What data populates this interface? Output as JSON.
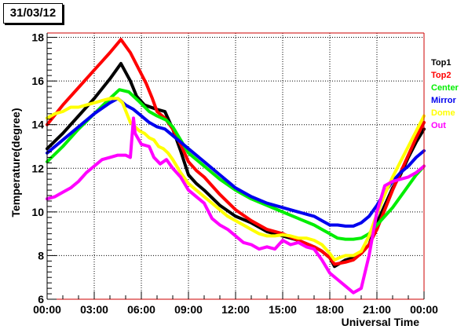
{
  "title": "31/03/12",
  "chart_data": {
    "type": "line",
    "xlabel": "Universal Time",
    "ylabel": "Temperature(degree)",
    "xlim": [
      0,
      24
    ],
    "ylim": [
      6,
      18.2
    ],
    "x_ticks": [
      "00:00",
      "03:00",
      "06:00",
      "09:00",
      "12:00",
      "15:00",
      "18:00",
      "21:00",
      "00:00"
    ],
    "y_ticks": [
      6,
      8,
      10,
      12,
      14,
      16,
      18
    ],
    "grid": true,
    "legend_position": "right",
    "series": [
      {
        "name": "Top1",
        "color": "#000000",
        "points": [
          [
            0,
            12.9
          ],
          [
            1,
            13.6
          ],
          [
            2,
            14.4
          ],
          [
            3,
            15.2
          ],
          [
            4,
            16.1
          ],
          [
            4.7,
            16.8
          ],
          [
            5.3,
            16.0
          ],
          [
            5.7,
            15.3
          ],
          [
            6.2,
            14.9
          ],
          [
            7,
            14.7
          ],
          [
            7.5,
            14.6
          ],
          [
            8,
            13.8
          ],
          [
            8.5,
            12.8
          ],
          [
            9,
            11.7
          ],
          [
            9.5,
            11.3
          ],
          [
            10,
            11.0
          ],
          [
            11,
            10.3
          ],
          [
            12,
            9.8
          ],
          [
            13,
            9.5
          ],
          [
            14,
            9.1
          ],
          [
            15,
            8.9
          ],
          [
            16,
            8.7
          ],
          [
            17,
            8.4
          ],
          [
            17.5,
            8.2
          ],
          [
            18,
            7.9
          ],
          [
            18.3,
            7.5
          ],
          [
            19,
            7.8
          ],
          [
            19.5,
            7.9
          ],
          [
            20,
            8.1
          ],
          [
            20.5,
            8.5
          ],
          [
            21,
            9.5
          ],
          [
            21.5,
            10.3
          ],
          [
            22,
            11.1
          ],
          [
            22.5,
            11.7
          ],
          [
            23,
            12.5
          ],
          [
            23.5,
            13.2
          ],
          [
            24,
            13.8
          ]
        ]
      },
      {
        "name": "Top2",
        "color": "#ff0000",
        "points": [
          [
            0,
            14.0
          ],
          [
            1,
            14.9
          ],
          [
            2,
            15.7
          ],
          [
            3,
            16.5
          ],
          [
            4,
            17.3
          ],
          [
            4.7,
            17.9
          ],
          [
            5.3,
            17.3
          ],
          [
            5.8,
            16.6
          ],
          [
            6.3,
            15.9
          ],
          [
            6.7,
            15.2
          ],
          [
            7,
            14.6
          ],
          [
            7.5,
            14.3
          ],
          [
            8,
            13.8
          ],
          [
            8.5,
            13.1
          ],
          [
            9,
            12.3
          ],
          [
            9.5,
            11.9
          ],
          [
            10,
            11.6
          ],
          [
            11,
            10.8
          ],
          [
            12,
            10.1
          ],
          [
            13,
            9.6
          ],
          [
            14,
            9.2
          ],
          [
            15,
            9.0
          ],
          [
            16,
            8.7
          ],
          [
            17,
            8.4
          ],
          [
            17.5,
            8.2
          ],
          [
            18,
            7.9
          ],
          [
            18.3,
            7.6
          ],
          [
            19,
            7.7
          ],
          [
            19.5,
            7.8
          ],
          [
            20,
            8.1
          ],
          [
            20.5,
            8.5
          ],
          [
            21,
            9.2
          ],
          [
            21.5,
            10.1
          ],
          [
            22,
            11.0
          ],
          [
            22.5,
            11.8
          ],
          [
            23,
            12.6
          ],
          [
            23.5,
            13.4
          ],
          [
            24,
            14.1
          ]
        ]
      },
      {
        "name": "Center",
        "color": "#00ee00",
        "points": [
          [
            0,
            12.3
          ],
          [
            1,
            13.0
          ],
          [
            2,
            13.8
          ],
          [
            3,
            14.5
          ],
          [
            4,
            15.2
          ],
          [
            4.6,
            15.6
          ],
          [
            5.2,
            15.5
          ],
          [
            5.8,
            15.1
          ],
          [
            6.5,
            14.6
          ],
          [
            7,
            14.4
          ],
          [
            7.6,
            14.2
          ],
          [
            8,
            13.9
          ],
          [
            8.5,
            13.3
          ],
          [
            9,
            12.7
          ],
          [
            10,
            12.1
          ],
          [
            11,
            11.5
          ],
          [
            12,
            11.0
          ],
          [
            13,
            10.6
          ],
          [
            14,
            10.3
          ],
          [
            15,
            10.0
          ],
          [
            16,
            9.7
          ],
          [
            17,
            9.4
          ],
          [
            17.5,
            9.2
          ],
          [
            18,
            9.0
          ],
          [
            18.5,
            8.8
          ],
          [
            19,
            8.75
          ],
          [
            19.5,
            8.75
          ],
          [
            20,
            8.8
          ],
          [
            20.5,
            9.0
          ],
          [
            21,
            9.4
          ],
          [
            21.5,
            9.8
          ],
          [
            22,
            10.2
          ],
          [
            22.5,
            10.7
          ],
          [
            23,
            11.2
          ],
          [
            23.5,
            11.7
          ],
          [
            24,
            12.1
          ]
        ]
      },
      {
        "name": "Mirror",
        "color": "#0000ee",
        "points": [
          [
            0,
            12.7
          ],
          [
            1,
            13.3
          ],
          [
            2,
            13.9
          ],
          [
            3,
            14.5
          ],
          [
            4,
            15.0
          ],
          [
            4.5,
            15.2
          ],
          [
            5,
            14.9
          ],
          [
            5.5,
            14.7
          ],
          [
            6,
            14.4
          ],
          [
            6.5,
            14.1
          ],
          [
            7,
            13.9
          ],
          [
            7.5,
            13.8
          ],
          [
            8,
            13.5
          ],
          [
            8.5,
            13.2
          ],
          [
            9,
            12.9
          ],
          [
            10,
            12.3
          ],
          [
            11,
            11.7
          ],
          [
            12,
            11.1
          ],
          [
            13,
            10.7
          ],
          [
            14,
            10.4
          ],
          [
            15,
            10.2
          ],
          [
            16,
            10.0
          ],
          [
            17,
            9.8
          ],
          [
            17.5,
            9.6
          ],
          [
            18,
            9.4
          ],
          [
            18.5,
            9.4
          ],
          [
            19,
            9.35
          ],
          [
            19.5,
            9.35
          ],
          [
            20,
            9.5
          ],
          [
            20.5,
            9.8
          ],
          [
            21,
            10.3
          ],
          [
            21.5,
            10.9
          ],
          [
            22,
            11.4
          ],
          [
            22.5,
            11.8
          ],
          [
            23,
            12.1
          ],
          [
            23.5,
            12.5
          ],
          [
            24,
            12.8
          ]
        ]
      },
      {
        "name": "Dome",
        "color": "#ffff00",
        "points": [
          [
            0,
            14.3
          ],
          [
            0.5,
            14.5
          ],
          [
            1,
            14.6
          ],
          [
            1.5,
            14.8
          ],
          [
            2,
            14.8
          ],
          [
            2.5,
            14.9
          ],
          [
            3,
            15.0
          ],
          [
            3.5,
            15.1
          ],
          [
            4,
            15.2
          ],
          [
            4.5,
            15.2
          ],
          [
            4.8,
            15.0
          ],
          [
            5.3,
            14.1
          ],
          [
            5.6,
            13.9
          ],
          [
            5.9,
            13.7
          ],
          [
            6.2,
            13.6
          ],
          [
            6.5,
            13.4
          ],
          [
            6.8,
            13.3
          ],
          [
            7.1,
            13.0
          ],
          [
            7.4,
            12.9
          ],
          [
            7.7,
            12.7
          ],
          [
            8,
            12.4
          ],
          [
            8.5,
            11.8
          ],
          [
            9,
            11.3
          ],
          [
            9.5,
            11.0
          ],
          [
            10,
            10.7
          ],
          [
            10.5,
            10.4
          ],
          [
            11,
            10.1
          ],
          [
            11.5,
            9.8
          ],
          [
            12,
            9.6
          ],
          [
            12.5,
            9.4
          ],
          [
            13,
            9.2
          ],
          [
            13.5,
            9.0
          ],
          [
            14,
            8.9
          ],
          [
            14.5,
            8.9
          ],
          [
            15,
            8.95
          ],
          [
            15.5,
            8.9
          ],
          [
            16,
            8.8
          ],
          [
            16.5,
            8.8
          ],
          [
            17,
            8.7
          ],
          [
            17.5,
            8.5
          ],
          [
            18,
            8.1
          ],
          [
            18.3,
            7.8
          ],
          [
            18.6,
            7.9
          ],
          [
            19,
            8.0
          ],
          [
            19.5,
            8.0
          ],
          [
            20,
            8.2
          ],
          [
            20.5,
            8.9
          ],
          [
            21,
            9.9
          ],
          [
            21.5,
            10.8
          ],
          [
            22,
            11.6
          ],
          [
            22.5,
            12.3
          ],
          [
            23,
            13.0
          ],
          [
            23.5,
            13.7
          ],
          [
            24,
            14.4
          ]
        ]
      },
      {
        "name": "Out",
        "color": "#ff00ff",
        "points": [
          [
            0,
            10.6
          ],
          [
            0.5,
            10.7
          ],
          [
            1,
            10.9
          ],
          [
            1.5,
            11.1
          ],
          [
            2,
            11.4
          ],
          [
            2.5,
            11.8
          ],
          [
            3,
            12.1
          ],
          [
            3.5,
            12.4
          ],
          [
            4,
            12.5
          ],
          [
            4.5,
            12.6
          ],
          [
            5,
            12.6
          ],
          [
            5.3,
            12.5
          ],
          [
            5.5,
            14.3
          ],
          [
            5.6,
            13.6
          ],
          [
            6,
            13.1
          ],
          [
            6.5,
            13.0
          ],
          [
            6.8,
            12.5
          ],
          [
            7.2,
            12.2
          ],
          [
            7.6,
            12.4
          ],
          [
            8,
            12.0
          ],
          [
            8.5,
            11.6
          ],
          [
            9,
            11.0
          ],
          [
            9.5,
            10.7
          ],
          [
            10,
            10.4
          ],
          [
            10.5,
            9.7
          ],
          [
            11,
            9.4
          ],
          [
            11.5,
            9.2
          ],
          [
            12,
            8.9
          ],
          [
            12.5,
            8.6
          ],
          [
            13,
            8.5
          ],
          [
            13.5,
            8.3
          ],
          [
            14,
            8.4
          ],
          [
            14.5,
            8.3
          ],
          [
            15,
            8.7
          ],
          [
            15.5,
            8.5
          ],
          [
            16,
            8.6
          ],
          [
            16.5,
            8.4
          ],
          [
            17,
            8.3
          ],
          [
            17.5,
            7.8
          ],
          [
            18,
            7.2
          ],
          [
            18.5,
            6.9
          ],
          [
            19,
            6.6
          ],
          [
            19.5,
            6.3
          ],
          [
            20,
            6.5
          ],
          [
            20.5,
            8.0
          ],
          [
            21,
            10.0
          ],
          [
            21.5,
            11.2
          ],
          [
            22,
            11.4
          ],
          [
            22.5,
            11.5
          ],
          [
            23,
            11.6
          ],
          [
            23.5,
            11.8
          ],
          [
            24,
            12.1
          ]
        ]
      }
    ]
  }
}
